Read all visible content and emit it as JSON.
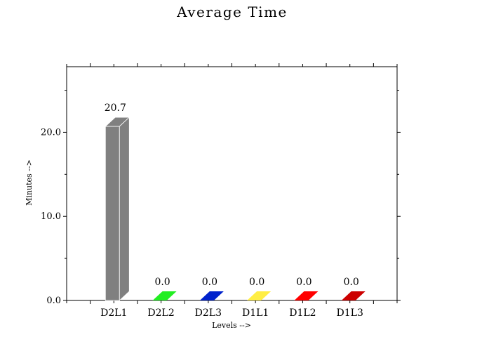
{
  "chart_data": {
    "type": "bar",
    "title": "Average Time",
    "xlabel": "Levels -->",
    "ylabel": "Minutes -->",
    "categories": [
      "D2L1",
      "D2L2",
      "D2L3",
      "D1L1",
      "D1L2",
      "D1L3"
    ],
    "values": [
      20.7,
      0.0,
      0.0,
      0.0,
      0.0,
      0.0
    ],
    "value_labels": [
      "20.7",
      "0.0",
      "0.0",
      "0.0",
      "0.0",
      "0.0"
    ],
    "colors": [
      "#808080",
      "#22ee22",
      "#0022cc",
      "#ffee44",
      "#ff0000",
      "#cc0000"
    ],
    "ylim": [
      0,
      27.8
    ],
    "yticks": [
      0,
      10,
      20
    ],
    "ytick_labels": [
      "0.0",
      "10.0",
      "20.0"
    ],
    "grid": false,
    "style": "3d"
  }
}
